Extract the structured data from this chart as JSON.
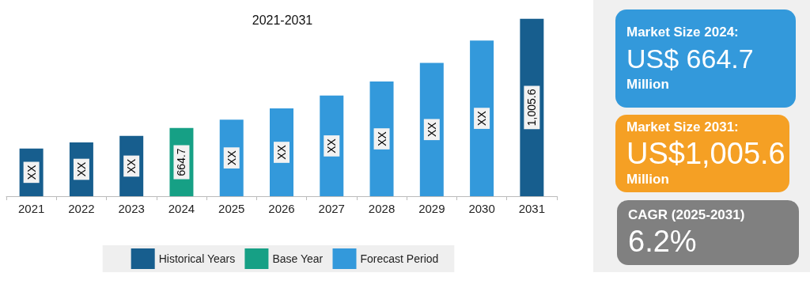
{
  "chart_data": [
    {
      "type": "bar",
      "title": "2021-2031",
      "stacked": true,
      "legend": "bottom",
      "ylim": [
        452,
        1010
      ],
      "categories": [
        "2021",
        "2022",
        "2023",
        "2024",
        "2025",
        "2026",
        "2027",
        "2028",
        "2029",
        "2030",
        "2031"
      ],
      "series": [
        {
          "name": "Historical Years",
          "color": "#175e8e",
          "values": [
            601,
            620,
            640,
            null,
            null,
            null,
            null,
            null,
            null,
            null,
            1005.6
          ],
          "value_labels": [
            "XX",
            "XX",
            "XX",
            null,
            null,
            null,
            null,
            null,
            null,
            null,
            "1,005.6"
          ]
        },
        {
          "name": "Base Year",
          "color": "#16a085",
          "values": [
            null,
            null,
            null,
            664.7,
            null,
            null,
            null,
            null,
            null,
            null,
            null
          ],
          "value_labels": [
            null,
            null,
            null,
            "664.7",
            null,
            null,
            null,
            null,
            null,
            null,
            null
          ]
        },
        {
          "name": "Forecast Period",
          "color": "#3399db",
          "values": [
            null,
            null,
            null,
            null,
            691,
            726,
            766,
            810,
            868,
            938,
            null
          ],
          "value_labels": [
            null,
            null,
            null,
            null,
            "XX",
            "XX",
            "XX",
            "XX",
            "XX",
            "XX",
            null
          ]
        }
      ]
    },
    {
      "type": "other",
      "annotations": [
        "Market Size 2024:\nUS$ 664.7\nMillion",
        "Market Size 2031:\nUS$1,005.6\nMillion",
        "CAGR (2025-2031)\n6.2%"
      ],
      "colors": [
        "#3399db",
        "#f5a024",
        "#808080"
      ]
    }
  ]
}
